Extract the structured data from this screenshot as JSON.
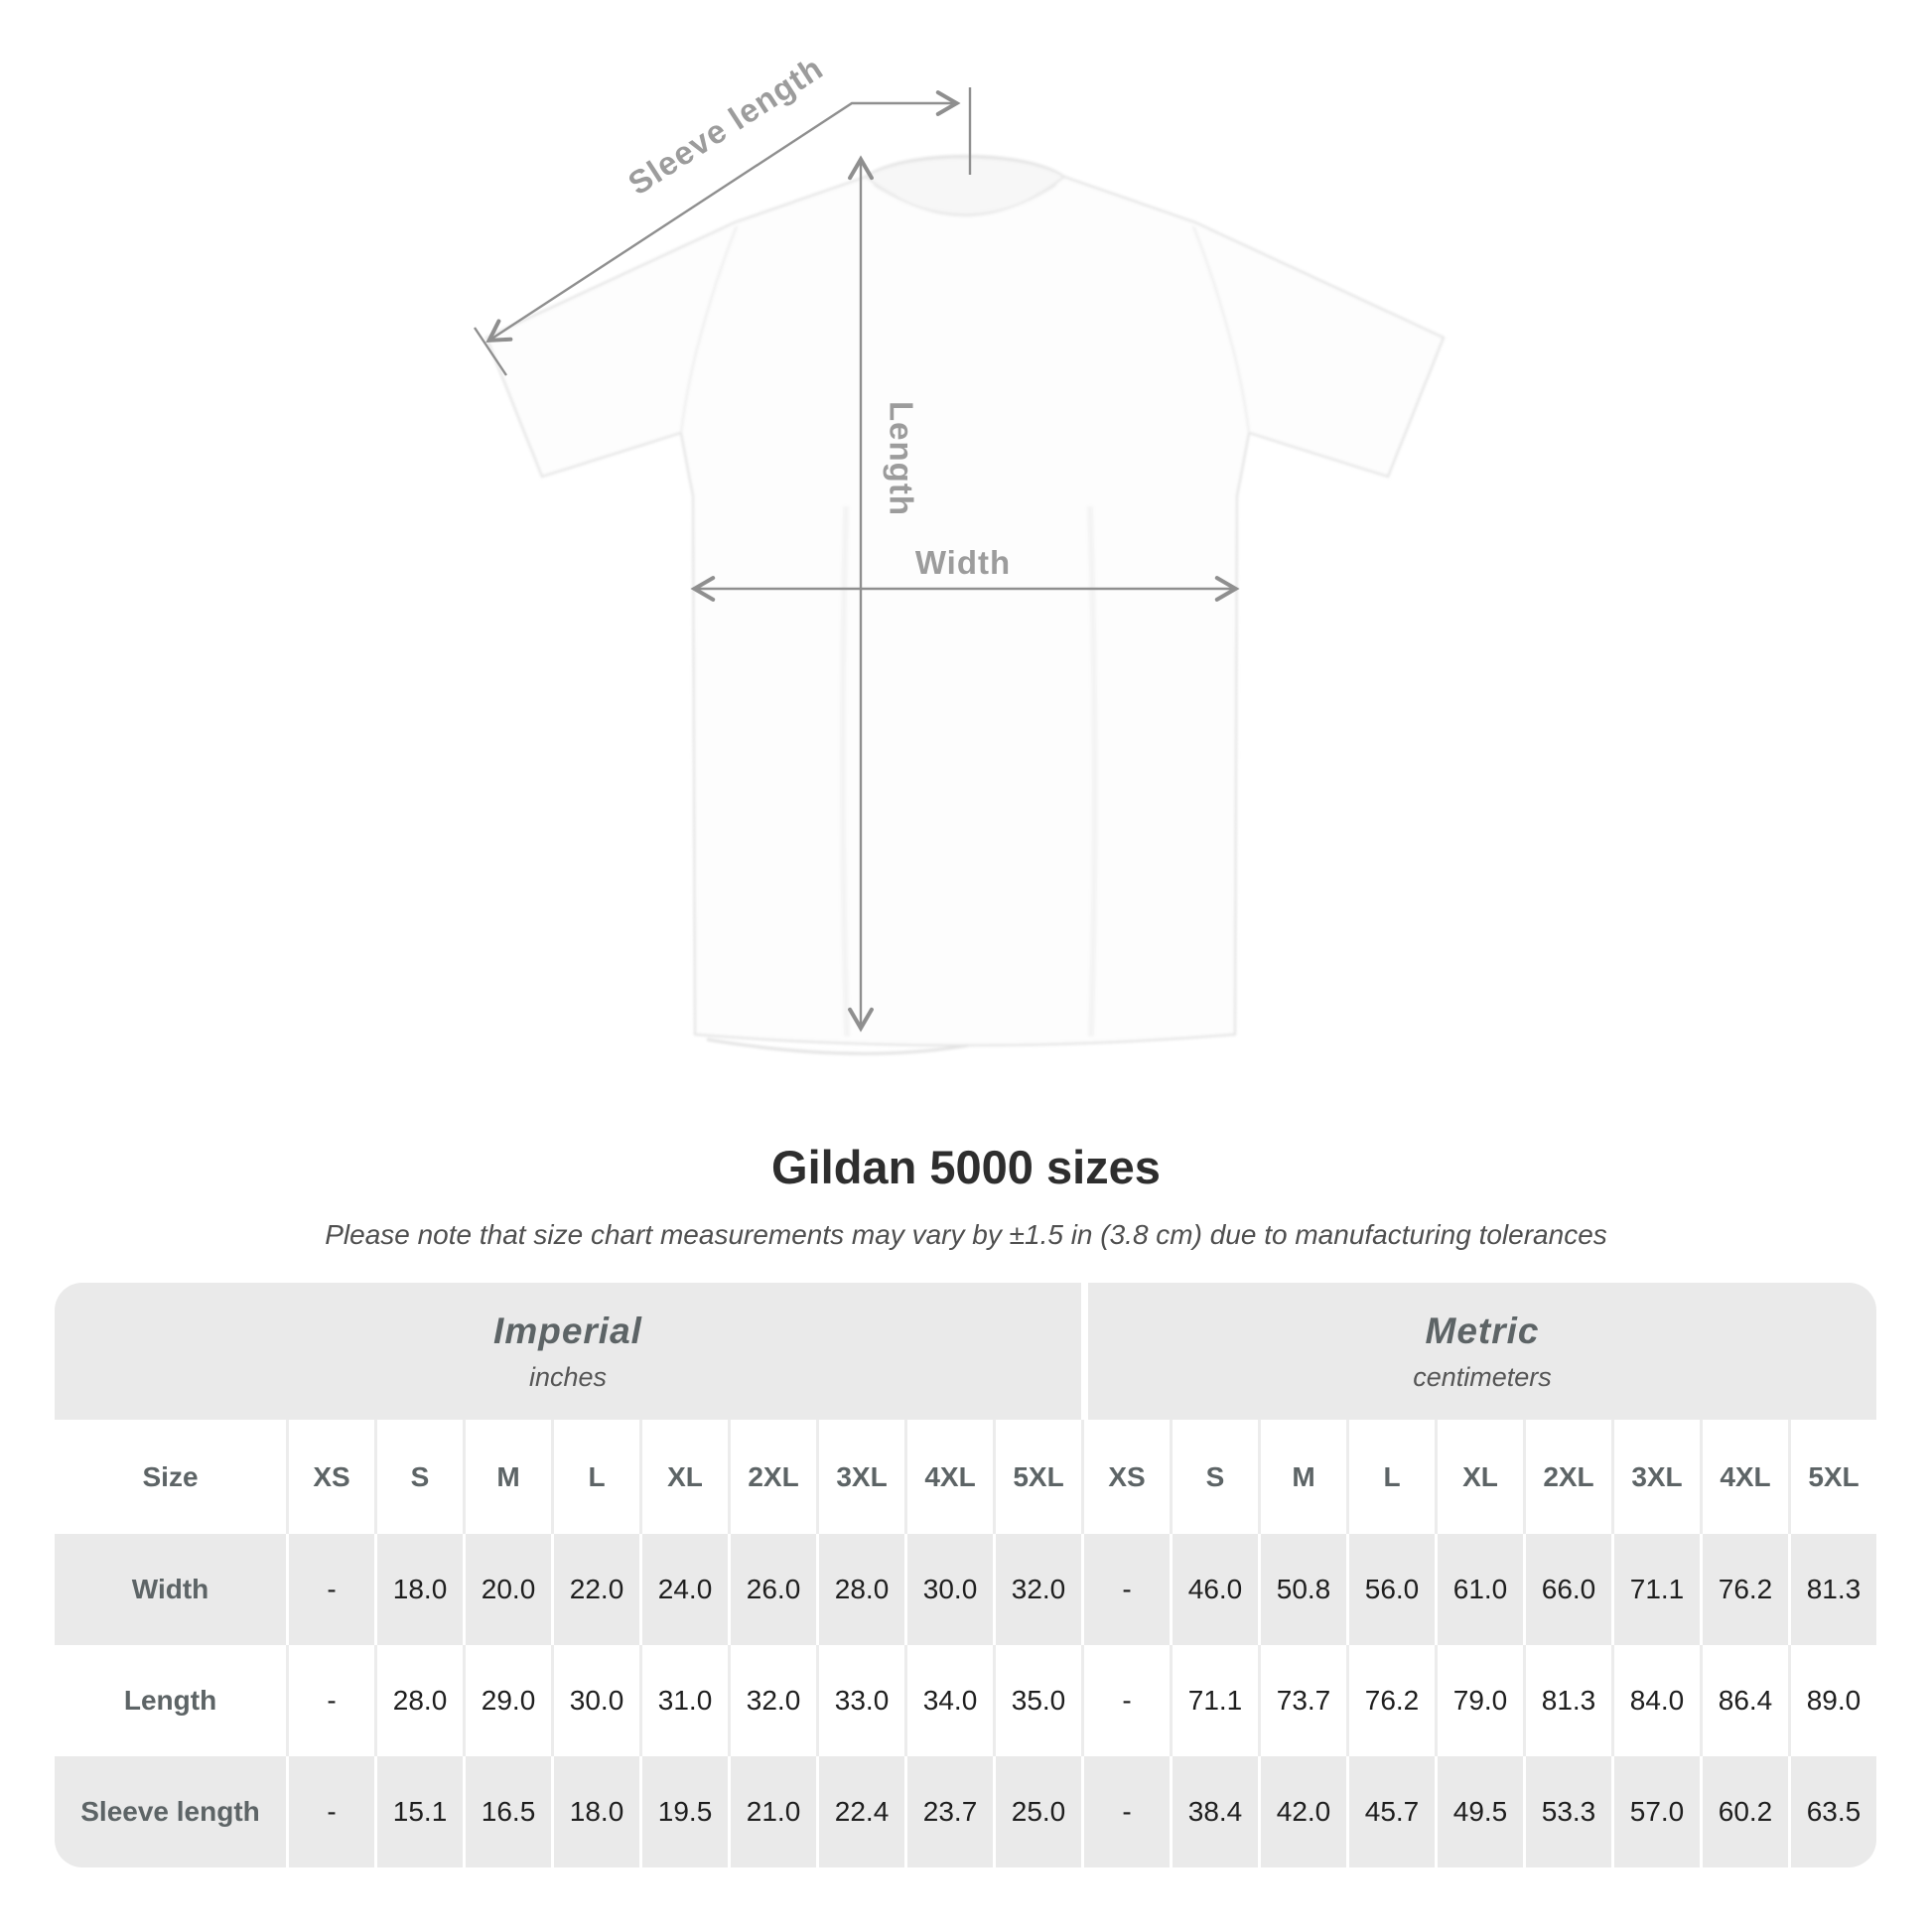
{
  "diagram": {
    "sleeve_length_label": "Sleeve length",
    "length_label": "Length",
    "width_label": "Width"
  },
  "heading": {
    "title": "Gildan 5000 sizes",
    "subtitle": "Please note that size chart measurements may vary by ±1.5 in (3.8 cm) due to manufacturing tolerances"
  },
  "size_chart": {
    "column_groups": [
      {
        "name": "Imperial",
        "unit": "inches"
      },
      {
        "name": "Metric",
        "unit": "centimeters"
      }
    ],
    "size_header": "Size",
    "size_columns": [
      "XS",
      "S",
      "M",
      "L",
      "XL",
      "2XL",
      "3XL",
      "4XL",
      "5XL"
    ],
    "rows": [
      {
        "label": "Width",
        "imperial": [
          "-",
          "18.0",
          "20.0",
          "22.0",
          "24.0",
          "26.0",
          "28.0",
          "30.0",
          "32.0"
        ],
        "metric": [
          "-",
          "46.0",
          "50.8",
          "56.0",
          "61.0",
          "66.0",
          "71.1",
          "76.2",
          "81.3"
        ]
      },
      {
        "label": "Length",
        "imperial": [
          "-",
          "28.0",
          "29.0",
          "30.0",
          "31.0",
          "32.0",
          "33.0",
          "34.0",
          "35.0"
        ],
        "metric": [
          "-",
          "71.1",
          "73.7",
          "76.2",
          "79.0",
          "81.3",
          "84.0",
          "86.4",
          "89.0"
        ]
      },
      {
        "label": "Sleeve length",
        "imperial": [
          "-",
          "15.1",
          "16.5",
          "18.0",
          "19.5",
          "21.0",
          "22.4",
          "23.7",
          "25.0"
        ],
        "metric": [
          "-",
          "38.4",
          "42.0",
          "45.7",
          "49.5",
          "53.3",
          "57.0",
          "60.2",
          "63.5"
        ]
      }
    ]
  },
  "colors": {
    "annotation_line": "#8f8f8f",
    "annotation_text": "#9c9c9c",
    "table_gray": "#eaeaea",
    "title_text": "#2e2e2e",
    "muted_label": "#5d6466"
  }
}
